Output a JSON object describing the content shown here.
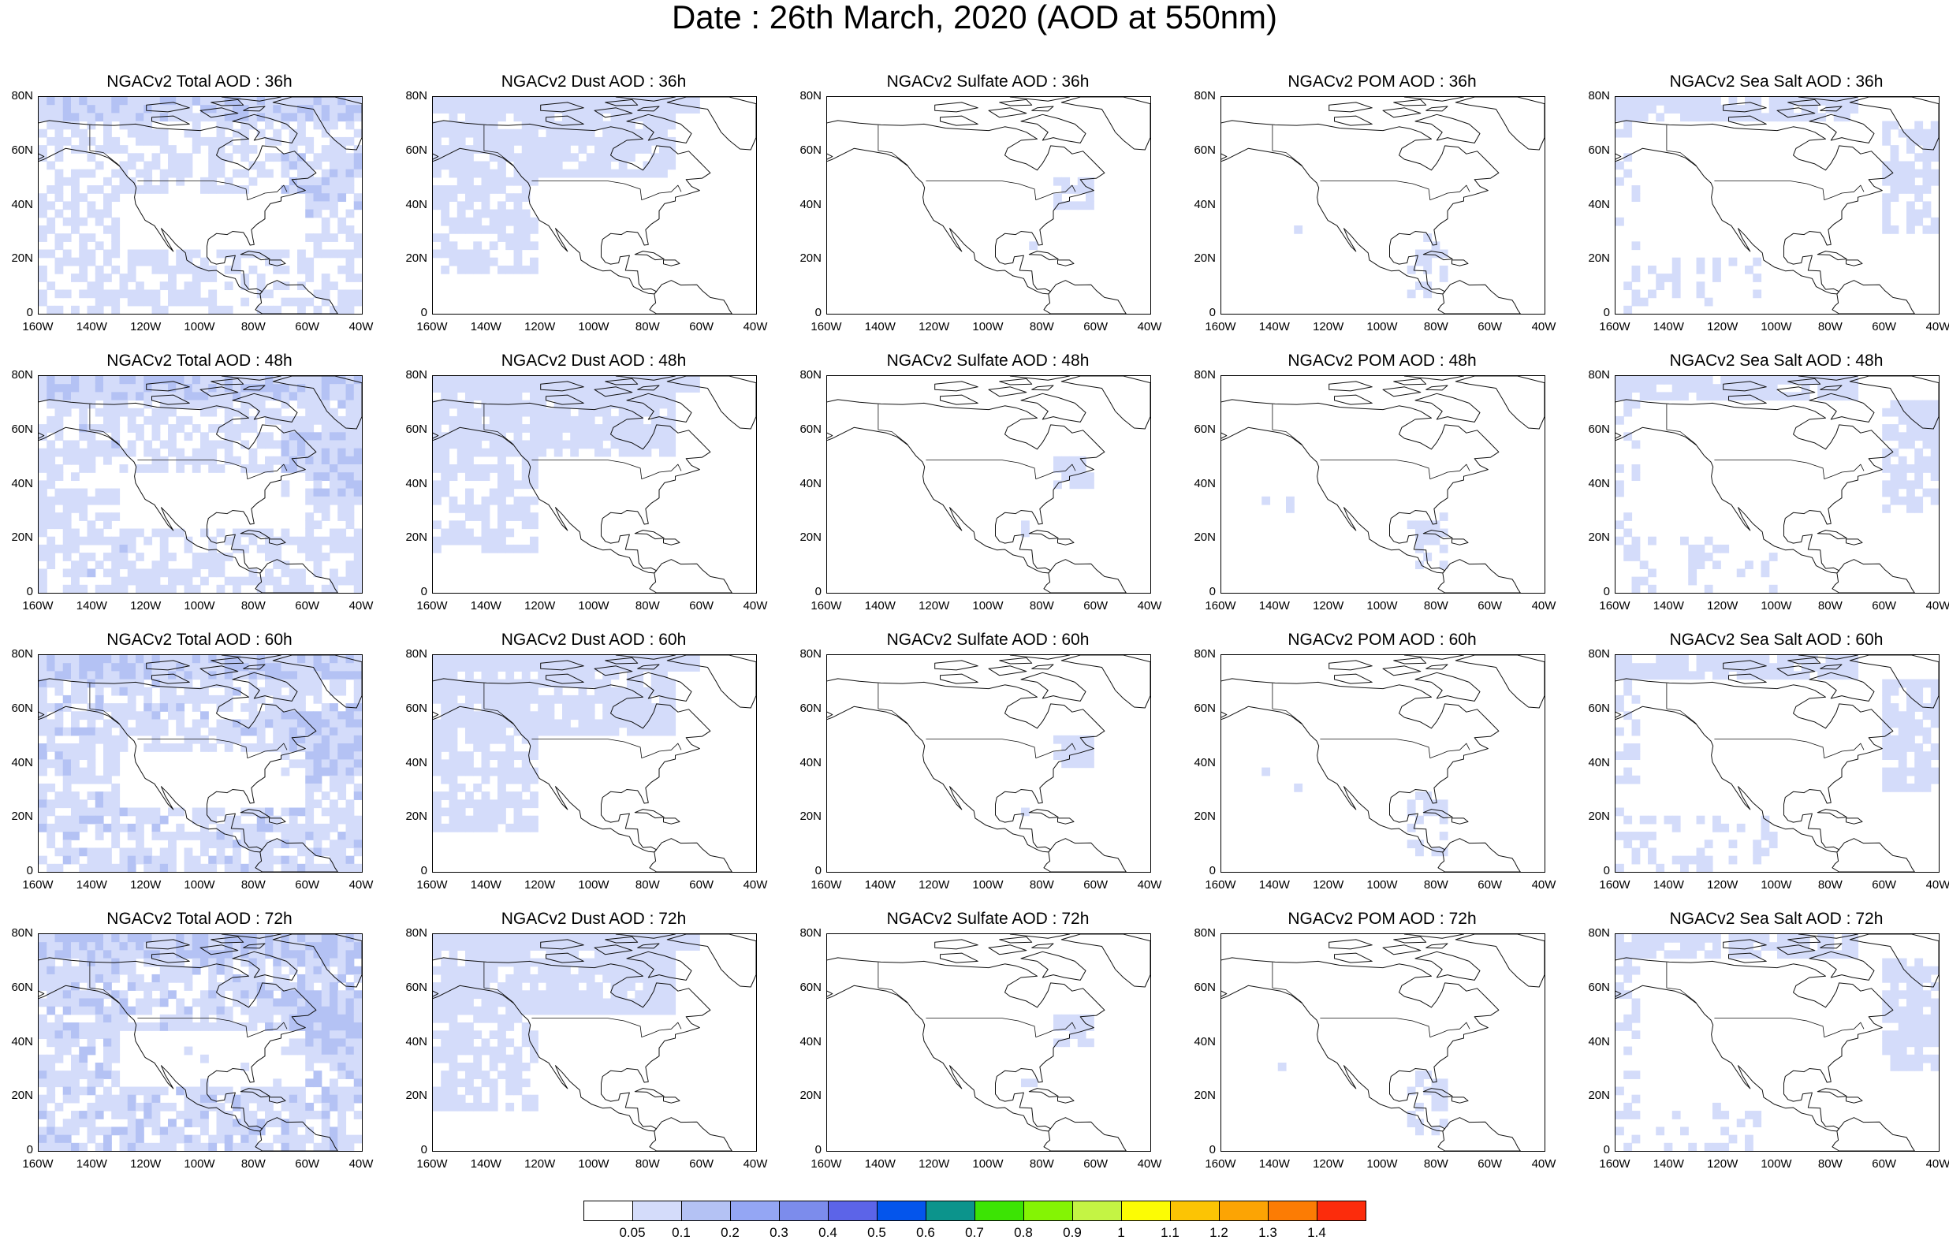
{
  "title": "Date : 26th March, 2020 (AOD at 550nm)",
  "x_ticks": [
    "160W",
    "140W",
    "120W",
    "100W",
    "80W",
    "60W",
    "40W"
  ],
  "y_ticks": [
    "80N",
    "60N",
    "40N",
    "20N",
    "0"
  ],
  "colorbar": {
    "colors": [
      "#ffffff",
      "#d4dcfa",
      "#b4c2f4",
      "#94a6f4",
      "#7c8cec",
      "#5c64e8",
      "#0455ec",
      "#0c948c",
      "#3ce404",
      "#84f404",
      "#c4f444",
      "#fcfc04",
      "#fcc404",
      "#fca404",
      "#fc7c04",
      "#fc2c0c"
    ],
    "labels": [
      "0.05",
      "0.1",
      "0.2",
      "0.3",
      "0.4",
      "0.5",
      "0.6",
      "0.7",
      "0.8",
      "0.9",
      "1",
      "1.1",
      "1.2",
      "1.3",
      "1.4"
    ]
  },
  "panels": [
    [
      {
        "title": "NGACv2 Total AOD : 36h",
        "type": "total",
        "level": 0.55
      },
      {
        "title": "NGACv2 Dust AOD : 36h",
        "type": "dust",
        "level": 0.45
      },
      {
        "title": "NGACv2 Sulfate AOD : 36h",
        "type": "sulfate",
        "level": 0.3
      },
      {
        "title": "NGACv2 POM AOD : 36h",
        "type": "pom",
        "level": 0.3
      },
      {
        "title": "NGACv2 Sea Salt AOD : 36h",
        "type": "seasalt",
        "level": 0.35
      }
    ],
    [
      {
        "title": "NGACv2 Total AOD : 48h",
        "type": "total",
        "level": 0.65
      },
      {
        "title": "NGACv2 Dust AOD : 48h",
        "type": "dust",
        "level": 0.5
      },
      {
        "title": "NGACv2 Sulfate AOD : 48h",
        "type": "sulfate",
        "level": 0.3
      },
      {
        "title": "NGACv2 POM AOD : 48h",
        "type": "pom",
        "level": 0.3
      },
      {
        "title": "NGACv2 Sea Salt AOD : 48h",
        "type": "seasalt",
        "level": 0.4
      }
    ],
    [
      {
        "title": "NGACv2 Total AOD : 60h",
        "type": "total",
        "level": 0.75
      },
      {
        "title": "NGACv2 Dust AOD : 60h",
        "type": "dust",
        "level": 0.55
      },
      {
        "title": "NGACv2 Sulfate AOD : 60h",
        "type": "sulfate",
        "level": 0.3
      },
      {
        "title": "NGACv2 POM AOD : 60h",
        "type": "pom",
        "level": 0.35
      },
      {
        "title": "NGACv2 Sea Salt AOD : 60h",
        "type": "seasalt",
        "level": 0.45
      }
    ],
    [
      {
        "title": "NGACv2 Total AOD : 72h",
        "type": "total",
        "level": 0.85
      },
      {
        "title": "NGACv2 Dust AOD : 72h",
        "type": "dust",
        "level": 0.55
      },
      {
        "title": "NGACv2 Sulfate AOD : 72h",
        "type": "sulfate",
        "level": 0.35
      },
      {
        "title": "NGACv2 POM AOD : 72h",
        "type": "pom",
        "level": 0.4
      },
      {
        "title": "NGACv2 Sea Salt  AOD : 72h",
        "type": "seasalt",
        "level": 0.5
      }
    ]
  ]
}
